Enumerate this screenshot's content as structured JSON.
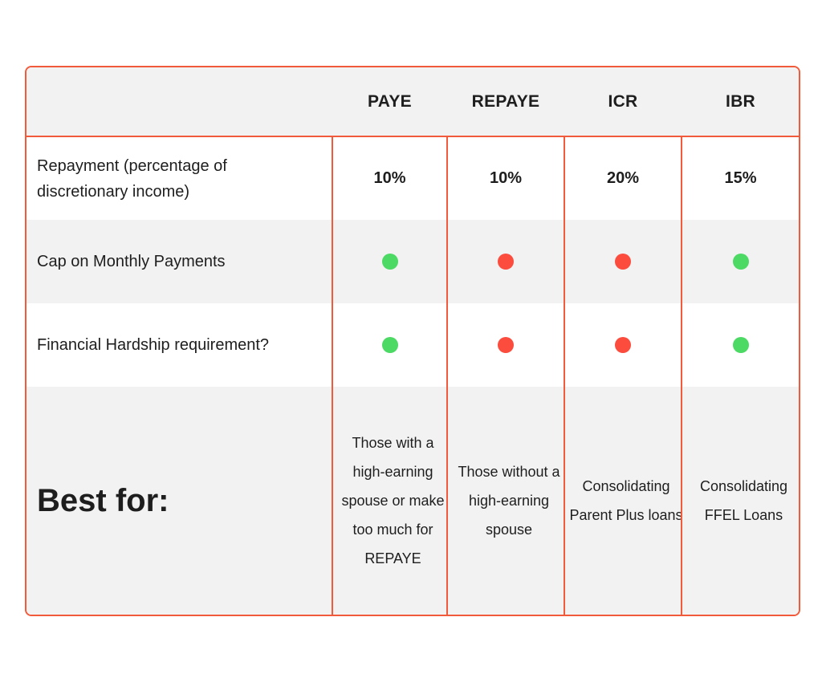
{
  "colors": {
    "border": "#f15a3a",
    "header_bg": "#f3f2f2",
    "row_alt_bg": "#f3f2f2",
    "row_bg": "#ffffff",
    "yes": "#4cd964",
    "no": "#fb4c3e"
  },
  "table": {
    "columns": [
      "PAYE",
      "REPAYE",
      "ICR",
      "IBR"
    ],
    "rows": [
      {
        "label": "Repayment (percentage of discretionary income)",
        "values": [
          "10%",
          "10%",
          "20%",
          "15%"
        ]
      },
      {
        "label": "Cap on Monthly Payments",
        "indicators": [
          "green",
          "red",
          "red",
          "green"
        ]
      },
      {
        "label": "Financial Hardship requirement?",
        "indicators": [
          "green",
          "red",
          "red",
          "green"
        ]
      },
      {
        "label": "Best for:",
        "values": [
          "Those with a high-earning spouse or make too much for REPAYE",
          "Those without a high-earning spouse",
          "Consolidating Parent Plus loans",
          "Consolidating FFEL Loans"
        ]
      }
    ]
  }
}
